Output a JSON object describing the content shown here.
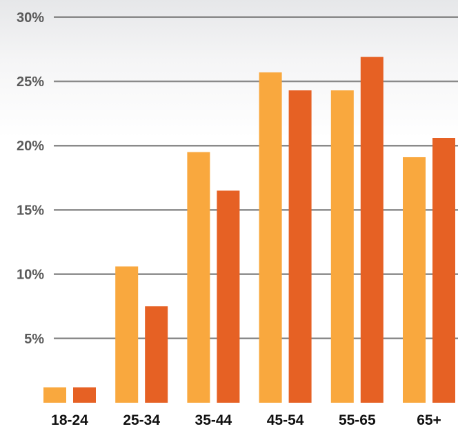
{
  "chart_data": {
    "type": "bar",
    "title": "",
    "xlabel": "",
    "ylabel": "",
    "categories": [
      "18-24",
      "25-34",
      "35-44",
      "45-54",
      "55-65",
      "65+"
    ],
    "series": [
      {
        "values": [
          1.2,
          10.6,
          19.5,
          25.7,
          24.3,
          19.1
        ],
        "color": "#F9A83E"
      },
      {
        "values": [
          1.2,
          7.5,
          16.5,
          24.3,
          26.9,
          20.6
        ],
        "color": "#E66124"
      }
    ],
    "yticks": [
      {
        "value": 30,
        "label": "30%"
      },
      {
        "value": 25,
        "label": "25%"
      },
      {
        "value": 20,
        "label": "20%"
      },
      {
        "value": 15,
        "label": "15%"
      },
      {
        "value": 10,
        "label": "10%"
      },
      {
        "value": 5,
        "label": "5%"
      }
    ],
    "ylim": [
      0,
      30
    ],
    "grid": true,
    "legend": "none"
  }
}
